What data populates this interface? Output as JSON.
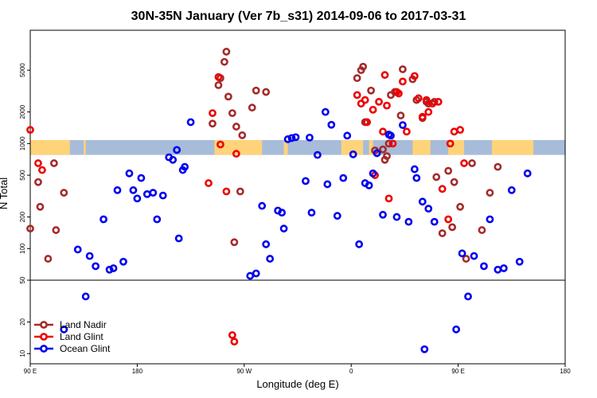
{
  "chart_data": {
    "type": "scatter",
    "title": "30N-35N January (Ver 7b_s31)   2014-09-06 to 2017-03-31",
    "xlabel": "Longitude (deg E)",
    "ylabel": "N Total",
    "xlim": [
      -90,
      180
    ],
    "ylim": [
      8,
      12000
    ],
    "yscale": "log",
    "grid": false,
    "x_ticks": [
      {
        "value": -90,
        "label": "90 E"
      },
      {
        "value": -36,
        "label": "180"
      },
      {
        "value": 18,
        "label": "90 W"
      },
      {
        "value": 72,
        "label": "0"
      },
      {
        "value": 126,
        "label": "90 E"
      },
      {
        "value": 180,
        "label": "180"
      }
    ],
    "y_ticks": [
      {
        "value": 10,
        "label": "10"
      },
      {
        "value": 20,
        "label": "20"
      },
      {
        "value": 50,
        "label": "50"
      },
      {
        "value": 100,
        "label": "100"
      },
      {
        "value": 200,
        "label": "200"
      },
      {
        "value": 500,
        "label": "500"
      },
      {
        "value": 1000,
        "label": "1000"
      },
      {
        "value": 2000,
        "label": "2000"
      },
      {
        "value": 5000,
        "label": "5000"
      }
    ],
    "reference_line": 50,
    "land_band": {
      "y_low": 780,
      "y_high": 1080,
      "land_color": "#ffd37a",
      "ocean_color": "#a7bcd9",
      "land_ranges": [
        [
          -90,
          -70
        ],
        [
          -63,
          -62
        ],
        [
          3,
          27
        ],
        [
          38,
          40
        ],
        [
          67,
          78
        ],
        [
          81,
          83
        ],
        [
          103,
          112
        ],
        [
          121,
          129
        ],
        [
          143,
          164
        ]
      ]
    },
    "legend": {
      "position": "bottom-left",
      "entries": [
        {
          "name": "Land Nadir",
          "color": "#a52a2a"
        },
        {
          "name": "Land Glint",
          "color": "#ee0000"
        },
        {
          "name": "Ocean Glint",
          "color": "#0000ee"
        }
      ]
    },
    "series": [
      {
        "name": "Land Nadir",
        "color": "#a52a2a",
        "x": [
          -90,
          -86,
          -85,
          -81,
          -78,
          -77,
          -73,
          2,
          5,
          6,
          8,
          9,
          10,
          12,
          13,
          14,
          16,
          17,
          22,
          24,
          29,
          75,
          77,
          78,
          79,
          82,
          84,
          88,
          89,
          90,
          91,
          92,
          94,
          97,
          98,
          103,
          105,
          108,
          110,
          111,
          114,
          115,
          118,
          121,
          123,
          124,
          127,
          130,
          133,
          138,
          142,
          146
        ],
        "y": [
          155,
          430,
          250,
          80,
          650,
          150,
          340,
          1550,
          3600,
          4200,
          6000,
          7500,
          2800,
          1950,
          115,
          1450,
          350,
          1200,
          2200,
          3200,
          3100,
          4200,
          5000,
          5400,
          1600,
          3200,
          860,
          880,
          700,
          760,
          1000,
          2900,
          3100,
          1850,
          5100,
          4100,
          2600,
          1750,
          2500,
          2400,
          2500,
          480,
          140,
          550,
          160,
          430,
          250,
          80,
          650,
          150,
          340,
          600
        ]
      },
      {
        "name": "Land Glint",
        "color": "#ee0000",
        "x": [
          -90,
          -86,
          -84,
          0,
          2,
          5,
          6,
          9,
          12,
          13,
          14,
          75,
          77,
          79,
          80,
          83,
          84,
          86,
          88,
          89,
          90,
          91,
          93,
          95,
          96,
          98,
          100,
          104,
          106,
          108,
          110,
          111,
          113,
          116,
          118,
          121,
          122,
          124,
          127,
          129
        ],
        "y": [
          1350,
          650,
          560,
          420,
          1950,
          4300,
          980,
          350,
          15,
          13,
          800,
          2900,
          2400,
          2600,
          1600,
          2100,
          500,
          2500,
          1300,
          4500,
          2300,
          300,
          1000,
          3100,
          3000,
          3900,
          1300,
          4400,
          2700,
          1800,
          2600,
          2000,
          2400,
          2500,
          370,
          190,
          1000,
          1300,
          1350,
          650
        ]
      },
      {
        "name": "Ocean Glint",
        "color": "#0000ee",
        "x": [
          -73,
          -66,
          -62,
          -60,
          -57,
          -53,
          -50,
          -48,
          -46,
          -43,
          -40,
          -38,
          -36,
          -34,
          -31,
          -28,
          -26,
          -23,
          -20,
          -18,
          -16,
          -15,
          -13,
          -12,
          -9,
          21,
          24,
          27,
          29,
          31,
          35,
          37,
          38,
          40,
          42,
          44,
          49,
          51,
          52,
          55,
          59,
          60,
          62,
          65,
          68,
          70,
          73,
          76,
          79,
          81,
          83,
          85,
          88,
          91,
          92,
          95,
          98,
          101,
          104,
          105,
          108,
          109,
          111,
          114,
          125,
          128,
          131,
          134,
          139,
          142,
          146,
          149,
          153,
          157,
          161
        ],
        "y": [
          17,
          98,
          35,
          85,
          68,
          190,
          63,
          65,
          360,
          75,
          520,
          360,
          300,
          470,
          330,
          340,
          190,
          320,
          740,
          700,
          870,
          125,
          560,
          600,
          1600,
          55,
          58,
          255,
          110,
          80,
          230,
          220,
          155,
          1100,
          1130,
          1150,
          440,
          1140,
          220,
          780,
          2000,
          410,
          1510,
          205,
          470,
          1190,
          790,
          110,
          420,
          400,
          520,
          810,
          210,
          1220,
          1190,
          200,
          1500,
          180,
          570,
          470,
          280,
          11,
          240,
          180,
          17,
          90,
          35,
          85,
          68,
          190,
          63,
          65,
          360,
          75,
          520
        ]
      }
    ]
  }
}
